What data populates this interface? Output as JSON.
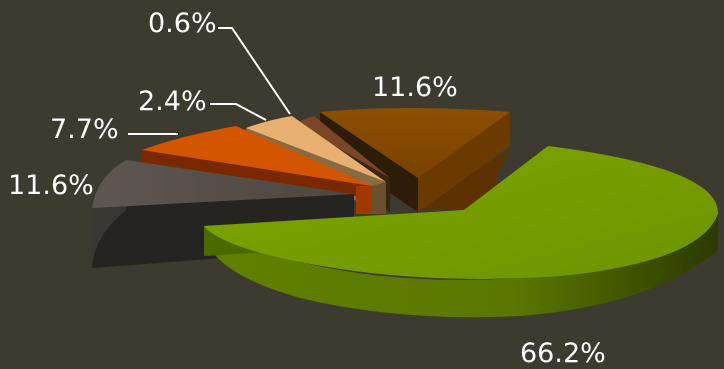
{
  "chart_data": {
    "type": "pie",
    "style": "3d-exploded",
    "slices": [
      {
        "label": "66.2%",
        "value": 66.2,
        "color": "#78a000"
      },
      {
        "label": "11.6%",
        "value": 11.6,
        "color": "#524c45"
      },
      {
        "label": "7.7%",
        "value": 7.7,
        "color": "#d45500"
      },
      {
        "label": "2.4%",
        "value": 2.4,
        "color": "#e8b070"
      },
      {
        "label": "0.6%",
        "value": 0.6,
        "color": "#7a4626"
      },
      {
        "label": "11.6%",
        "value": 11.6,
        "color": "#8a4a00"
      }
    ],
    "legend": "none",
    "grid": false
  },
  "colors": {
    "background": "#3d3b30",
    "label_text": "#ffffff",
    "leader_line": "#ffffff"
  }
}
